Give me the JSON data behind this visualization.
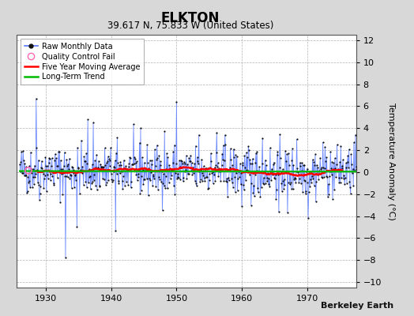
{
  "title": "ELKTON",
  "subtitle": "39.617 N, 75.833 W (United States)",
  "ylabel": "Temperature Anomaly (°C)",
  "watermark": "Berkeley Earth",
  "xlim": [
    1925.5,
    1977.5
  ],
  "ylim": [
    -10.5,
    12.5
  ],
  "yticks": [
    -10,
    -8,
    -6,
    -4,
    -2,
    0,
    2,
    4,
    6,
    8,
    10,
    12
  ],
  "xticks": [
    1930,
    1940,
    1950,
    1960,
    1970
  ],
  "start_year": 1926,
  "end_year": 1977,
  "background_color": "#d8d8d8",
  "plot_bg_color": "#ffffff",
  "grid_color": "#aaaaaa",
  "raw_line_color": "#5577ff",
  "raw_dot_color": "#111111",
  "moving_avg_color": "#ff0000",
  "trend_color": "#00bb00",
  "qc_fail_color": "#ff69b4",
  "seed": 42,
  "title_fontsize": 12,
  "subtitle_fontsize": 8.5,
  "tick_fontsize": 8,
  "ylabel_fontsize": 8,
  "legend_fontsize": 7,
  "watermark_fontsize": 8
}
